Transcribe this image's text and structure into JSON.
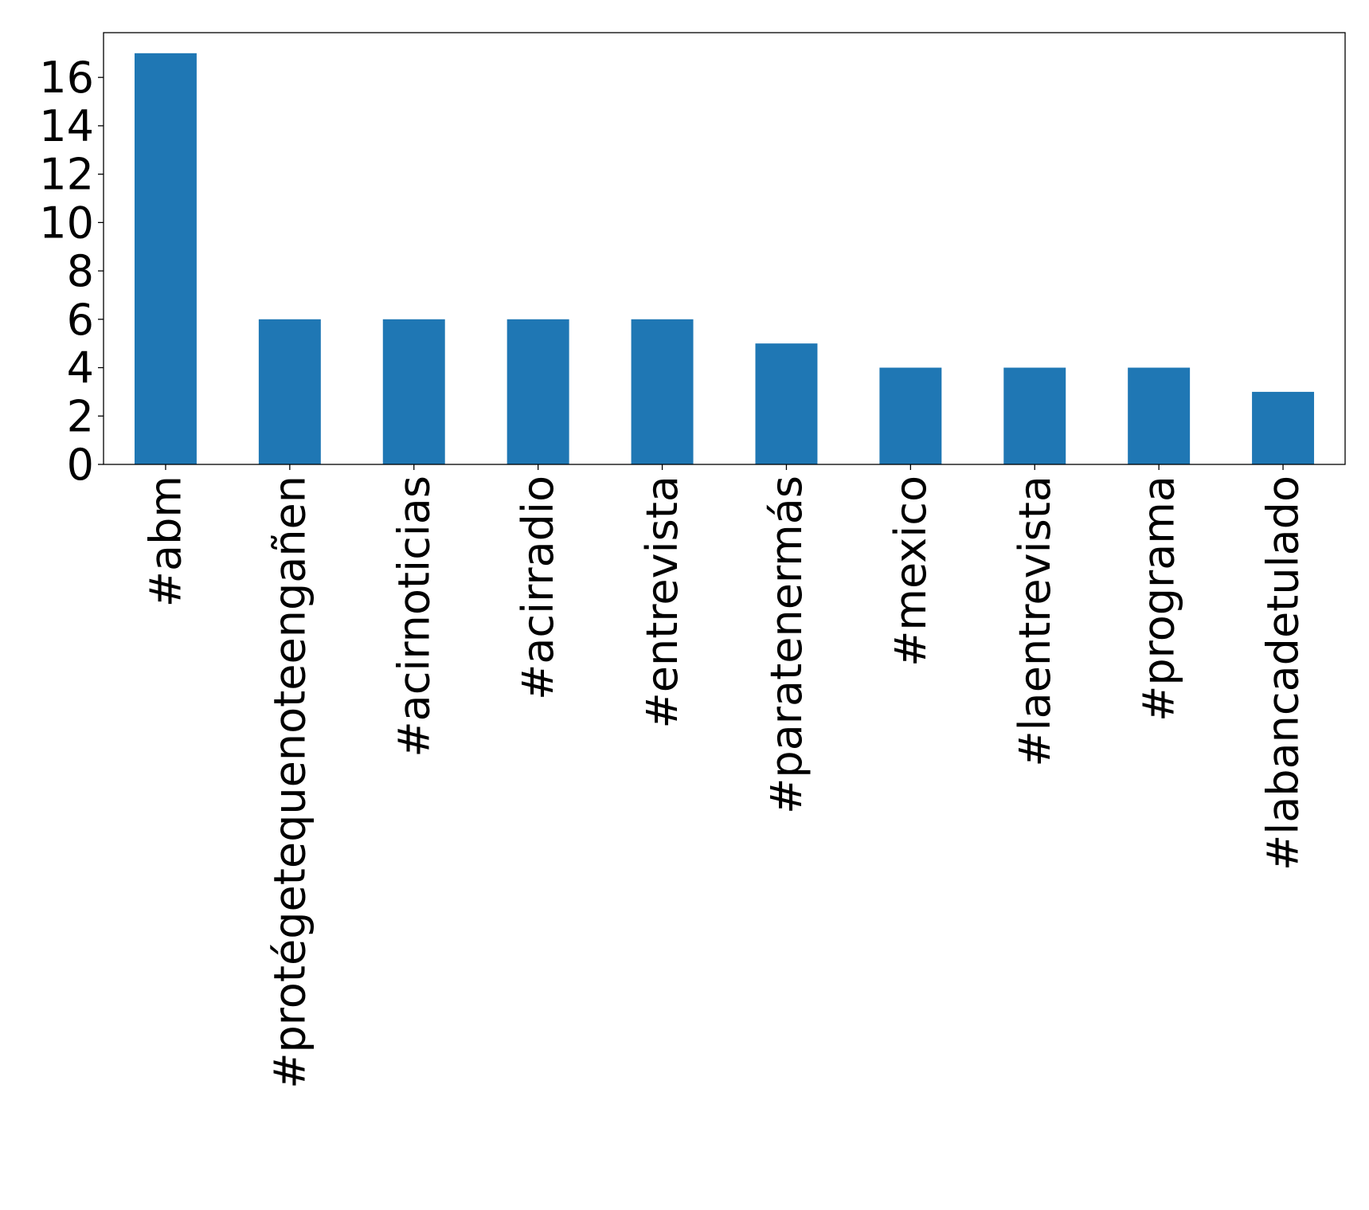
{
  "chart_data": {
    "type": "bar",
    "title": "",
    "xlabel": "",
    "ylabel": "",
    "categories": [
      "#abm",
      "#protégetequenoteengañen",
      "#acirnoticias",
      "#acirradio",
      "#entrevista",
      "#paratenermás",
      "#mexico",
      "#laentrevista",
      "#programa",
      "#labancadetulado"
    ],
    "values": [
      17,
      6,
      6,
      6,
      6,
      5,
      4,
      4,
      4,
      3
    ],
    "ylim": [
      0,
      17.85
    ],
    "yticks": [
      0,
      2,
      4,
      6,
      8,
      10,
      12,
      14,
      16
    ],
    "ytick_labels": [
      "0",
      "2",
      "4",
      "6",
      "8",
      "10",
      "12",
      "14",
      "16"
    ],
    "bar_color": "#1f77b4",
    "grid": false,
    "legend": "none"
  }
}
